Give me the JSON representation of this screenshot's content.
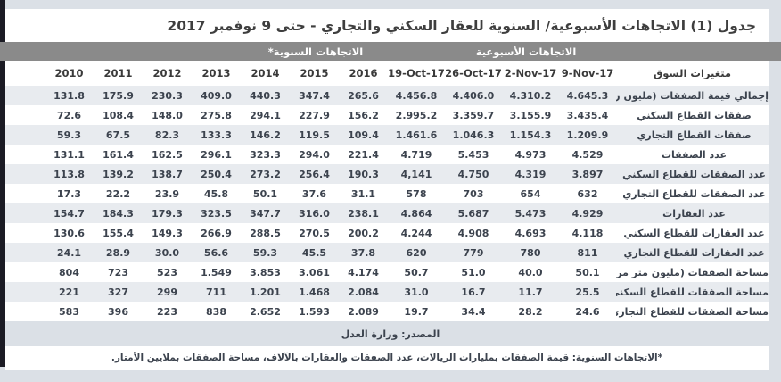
{
  "title": "جدول (1) الاتجاهات الأسبوعية/ السنوية للعقار السكني والتجاري - حتى 9 نوفمبر 2017",
  "group_headers": {
    "weekly": "الاتجاهات الأسبوعية",
    "annual": "الاتجاهات السنوية*"
  },
  "table": {
    "variable_column_header": "متغيرات السوق",
    "columns": [
      "2010",
      "2011",
      "2012",
      "2013",
      "2014",
      "2015",
      "2016",
      "19-Oct-17",
      "26-Oct-17",
      "2-Nov-17",
      "9-Nov-17"
    ],
    "rows": [
      {
        "label": "إجمالي قيمة الصفقات (مليون ريال)",
        "values": [
          "131.8",
          "175.9",
          "230.3",
          "409.0",
          "440.3",
          "347.4",
          "265.6",
          "4.456.8",
          "4.406.0",
          "4.310.2",
          "4.645.3"
        ]
      },
      {
        "label": "صفقات القطاع السكني",
        "values": [
          "72.6",
          "108.4",
          "148.0",
          "275.8",
          "294.1",
          "227.9",
          "156.2",
          "2.995.2",
          "3.359.7",
          "3.155.9",
          "3.435.4"
        ]
      },
      {
        "label": "صفقات القطاع التجاري",
        "values": [
          "59.3",
          "67.5",
          "82.3",
          "133.3",
          "146.2",
          "119.5",
          "109.4",
          "1.461.6",
          "1.046.3",
          "1.154.3",
          "1.209.9"
        ]
      },
      {
        "label": "عدد الصفقات",
        "values": [
          "131.1",
          "161.4",
          "162.5",
          "296.1",
          "323.3",
          "294.0",
          "221.4",
          "4.719",
          "5.453",
          "4.973",
          "4.529"
        ]
      },
      {
        "label": "عدد الصفقات للقطاع السكني",
        "values": [
          "113.8",
          "139.2",
          "138.7",
          "250.4",
          "273.2",
          "256.4",
          "190.3",
          "4,141",
          "4.750",
          "4.319",
          "3.897"
        ]
      },
      {
        "label": "عدد الصفقات للقطاع التجاري",
        "values": [
          "17.3",
          "22.2",
          "23.9",
          "45.8",
          "50.1",
          "37.6",
          "31.1",
          "578",
          "703",
          "654",
          "632"
        ]
      },
      {
        "label": "عدد العقارات",
        "values": [
          "154.7",
          "184.3",
          "179.3",
          "323.5",
          "347.7",
          "316.0",
          "238.1",
          "4.864",
          "5.687",
          "5.473",
          "4.929"
        ]
      },
      {
        "label": "عدد العقارات للقطاع السكني",
        "values": [
          "130.6",
          "155.4",
          "149.3",
          "266.9",
          "288.5",
          "270.5",
          "200.2",
          "4.244",
          "4.908",
          "4.693",
          "4.118"
        ]
      },
      {
        "label": "عدد العقارات للقطاع التجاري",
        "values": [
          "24.1",
          "28.9",
          "30.0",
          "56.6",
          "59.3",
          "45.5",
          "37.8",
          "620",
          "779",
          "780",
          "811"
        ]
      },
      {
        "label": "مساحة الصفقات (مليون متر مربع)",
        "values": [
          "804",
          "723",
          "523",
          "1.549",
          "3.853",
          "3.061",
          "4.174",
          "50.7",
          "51.0",
          "40.0",
          "50.1"
        ]
      },
      {
        "label": "مساحة الصفقات للقطاع السكني",
        "values": [
          "221",
          "327",
          "299",
          "711",
          "1.201",
          "1.468",
          "2.084",
          "31.0",
          "16.7",
          "11.7",
          "25.5"
        ]
      },
      {
        "label": "مساحة الصفقات للقطاع التجاري",
        "values": [
          "583",
          "396",
          "223",
          "838",
          "2.652",
          "1.593",
          "2.089",
          "19.7",
          "34.4",
          "28.2",
          "24.6"
        ]
      }
    ]
  },
  "footer": {
    "source": "المصدر: وزارة العدل",
    "note": "*الاتجاهات السنوية: قيمة الصفقات بمليارات الريالات، عدد الصفقات والعقارات بالآلاف، مساحة الصفقات بملايين الأمتار."
  },
  "colors": {
    "page_background": "#dbe0e6",
    "band_gray": "#8a8a8a",
    "alt_row": "#e8ebef",
    "text_dark": "#3c434e",
    "left_strip": "#1b1b24"
  }
}
